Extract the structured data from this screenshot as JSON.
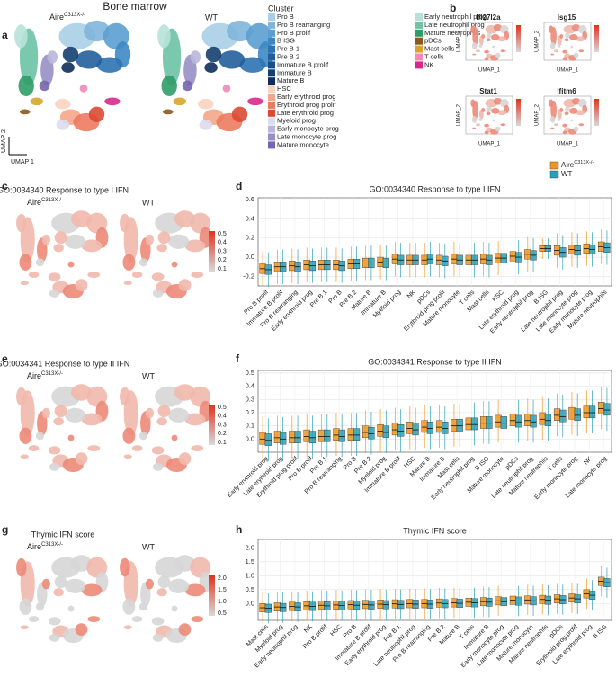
{
  "figure": {
    "title": "Bone marrow",
    "panel_labels": [
      "a",
      "b",
      "c",
      "d",
      "e",
      "f",
      "g",
      "h"
    ],
    "umap_axis": [
      "UMAP 1",
      "UMAP 2"
    ],
    "aire": "Aire",
    "aire_sup": "C313X-/-",
    "wt": "WT",
    "legend_title": "Cluster",
    "clusters": [
      {
        "name": "Pro B",
        "color": "#a9cfe6"
      },
      {
        "name": "Pro B rearranging",
        "color": "#7fb5db"
      },
      {
        "name": "Pro B prolif",
        "color": "#5c9fd0"
      },
      {
        "name": "B ISG",
        "color": "#3d88c4"
      },
      {
        "name": "Pre B 1",
        "color": "#2d72b2"
      },
      {
        "name": "Pre B 2",
        "color": "#215f9c"
      },
      {
        "name": "Immature B prolif",
        "color": "#1a4f86"
      },
      {
        "name": "Immature B",
        "color": "#153f70"
      },
      {
        "name": "Mature B",
        "color": "#0f2f5a"
      },
      {
        "name": "HSC",
        "color": "#fbd3c0"
      },
      {
        "name": "Early erythroid prog",
        "color": "#f4a68a"
      },
      {
        "name": "Erythroid prog prolif",
        "color": "#ec7b5e"
      },
      {
        "name": "Late erythroid prog",
        "color": "#dc4a35"
      },
      {
        "name": "Myeloid prog",
        "color": "#dcdcee"
      },
      {
        "name": "Early monocyte prog",
        "color": "#b9b7da"
      },
      {
        "name": "Late monocyte prog",
        "color": "#9690c4"
      },
      {
        "name": "Mature monocyte",
        "color": "#7566ad"
      },
      {
        "name": "Early neutrophil prog",
        "color": "#b7e2d8"
      },
      {
        "name": "Late neutrophil prog",
        "color": "#6cc3a6"
      },
      {
        "name": "Mature neutrophils",
        "color": "#2f9d67"
      },
      {
        "name": "pDCs",
        "color": "#8a5a1c"
      },
      {
        "name": "Mast cells",
        "color": "#d8a42b"
      },
      {
        "name": "T cells",
        "color": "#f08bb4"
      },
      {
        "name": "NK",
        "color": "#d62a8a"
      }
    ],
    "genes": [
      "Ifi27l2a",
      "Isg15",
      "Stat1",
      "Ifitm6"
    ],
    "b_xlabel": "UMAP_1",
    "b_ylabel": "UMAP_2",
    "score_titles": [
      "GO:0034340 Response to type I IFN",
      "GO:0034341 Response to type II IFN",
      "Thymic IFN score"
    ],
    "colorbars": [
      [
        "0.5",
        "0.4",
        "0.3",
        "0.2",
        "0.1"
      ],
      [
        "0.5",
        "0.4",
        "0.3",
        "0.2",
        "0.1"
      ],
      [
        "2.0",
        "1.5",
        "1.0",
        "0.5"
      ]
    ]
  },
  "chart_data": [
    {
      "type": "box",
      "title": "GO:0034340 Response to type I IFN",
      "grid": true,
      "legend": "top-right",
      "categories": [
        "Pro B prolif",
        "Immature B prolif",
        "Pro B rearranging",
        "Early erythroid prog",
        "Pre B 1",
        "Pro B",
        "Pre B 2",
        "Mature B",
        "Immature B",
        "Myeloid prog",
        "NK",
        "pDCs",
        "Erythroid prog prolif",
        "Mature monocyte",
        "T cells",
        "Mast cells",
        "HSC",
        "Late erythroid prog",
        "Early neutrophil prog",
        "B ISG",
        "Late neutrophil prog",
        "Late monocyte prog",
        "Early monocyte prog",
        "Mature neutrophils"
      ],
      "ylim": [
        -0.3,
        0.62
      ],
      "yticks": [
        -0.2,
        {
          "value": 0,
          "label": "0.0"
        },
        0.2,
        0.4,
        0.6
      ],
      "series": [
        {
          "name": "Aire",
          "superscript": "C313X-/-",
          "color": "#f0961e",
          "values": [
            -0.12,
            -0.1,
            -0.09,
            -0.08,
            -0.08,
            -0.08,
            -0.07,
            -0.06,
            -0.05,
            -0.02,
            -0.03,
            -0.03,
            -0.03,
            -0.02,
            -0.03,
            -0.02,
            -0.01,
            0.01,
            0.03,
            0.09,
            0.07,
            0.08,
            0.09,
            0.11
          ],
          "q1": [
            -0.17,
            -0.15,
            -0.14,
            -0.13,
            -0.13,
            -0.13,
            -0.12,
            -0.11,
            -0.1,
            -0.07,
            -0.08,
            -0.08,
            -0.08,
            -0.07,
            -0.08,
            -0.07,
            -0.06,
            -0.04,
            -0.02,
            0.06,
            0.02,
            0.03,
            0.04,
            0.06
          ],
          "q3": [
            -0.07,
            -0.05,
            -0.04,
            -0.03,
            -0.03,
            -0.03,
            -0.02,
            -0.01,
            0.0,
            0.03,
            0.02,
            0.02,
            0.02,
            0.03,
            0.02,
            0.03,
            0.04,
            0.06,
            0.08,
            0.12,
            0.12,
            0.13,
            0.14,
            0.16
          ]
        },
        {
          "name": "WT",
          "color": "#2aa0b8",
          "values": [
            -0.13,
            -0.1,
            -0.1,
            -0.09,
            -0.08,
            -0.09,
            -0.07,
            -0.06,
            -0.06,
            -0.03,
            -0.03,
            -0.02,
            -0.04,
            -0.03,
            -0.03,
            -0.03,
            -0.01,
            0.0,
            0.02,
            0.09,
            0.05,
            0.07,
            0.08,
            0.1
          ],
          "q1": [
            -0.18,
            -0.15,
            -0.15,
            -0.14,
            -0.13,
            -0.14,
            -0.12,
            -0.11,
            -0.11,
            -0.08,
            -0.08,
            -0.07,
            -0.09,
            -0.08,
            -0.08,
            -0.08,
            -0.06,
            -0.05,
            -0.03,
            0.06,
            0.0,
            0.02,
            0.03,
            0.05
          ],
          "q3": [
            -0.08,
            -0.05,
            -0.05,
            -0.04,
            -0.03,
            -0.04,
            -0.02,
            -0.01,
            -0.01,
            0.02,
            0.02,
            0.03,
            0.01,
            0.02,
            0.02,
            0.02,
            0.04,
            0.05,
            0.07,
            0.12,
            0.1,
            0.12,
            0.13,
            0.15
          ]
        }
      ]
    },
    {
      "type": "box",
      "title": "GO:0034341 Response to type II IFN",
      "grid": true,
      "categories": [
        "Early erythroid prog",
        "Late erythroid prog",
        "Erythroid prog prolif",
        "Pro B prolif",
        "Pre B 1",
        "Pro B rearranging",
        "Pro B",
        "Pre B 2",
        "Myeloid prog",
        "Immature B prolif",
        "HSC",
        "Mature B",
        "Immature B",
        "Mast cells",
        "Early neutrophil prog",
        "B ISG",
        "Mature monocyte",
        "pDCs",
        "Late neutrophil prog",
        "Mature neutrophils",
        "T cells",
        "Early monocyte prog",
        "NK",
        "Late monocyte prog"
      ],
      "ylim": [
        -0.1,
        0.52
      ],
      "yticks": [
        {
          "value": 0,
          "label": "0.0"
        },
        0.1,
        0.2,
        0.3,
        0.4,
        0.5
      ],
      "series": [
        {
          "name": "Aire",
          "superscript": "C313X-/-",
          "color": "#f0961e",
          "values": [
            0.0,
            0.01,
            0.01,
            0.02,
            0.02,
            0.03,
            0.03,
            0.05,
            0.06,
            0.07,
            0.08,
            0.09,
            0.09,
            0.1,
            0.11,
            0.12,
            0.13,
            0.14,
            0.14,
            0.15,
            0.18,
            0.19,
            0.2,
            0.23
          ],
          "q1": [
            -0.04,
            -0.03,
            -0.03,
            -0.02,
            -0.02,
            -0.01,
            -0.01,
            0.01,
            0.02,
            0.03,
            0.04,
            0.05,
            0.05,
            0.06,
            0.07,
            0.08,
            0.09,
            0.1,
            0.1,
            0.11,
            0.14,
            0.15,
            0.16,
            0.19
          ],
          "q3": [
            0.05,
            0.06,
            0.06,
            0.07,
            0.07,
            0.08,
            0.08,
            0.1,
            0.11,
            0.12,
            0.13,
            0.14,
            0.14,
            0.15,
            0.16,
            0.17,
            0.18,
            0.19,
            0.19,
            0.2,
            0.23,
            0.24,
            0.25,
            0.28
          ]
        },
        {
          "name": "WT",
          "color": "#2aa0b8",
          "values": [
            -0.01,
            0.0,
            0.01,
            0.01,
            0.02,
            0.02,
            0.03,
            0.04,
            0.05,
            0.06,
            0.07,
            0.08,
            0.08,
            0.1,
            0.11,
            0.12,
            0.12,
            0.13,
            0.13,
            0.14,
            0.17,
            0.18,
            0.2,
            0.22
          ],
          "q1": [
            -0.05,
            -0.04,
            -0.03,
            -0.03,
            -0.02,
            -0.02,
            -0.01,
            0.0,
            0.01,
            0.02,
            0.03,
            0.04,
            0.04,
            0.06,
            0.07,
            0.08,
            0.08,
            0.09,
            0.09,
            0.1,
            0.13,
            0.14,
            0.16,
            0.18
          ],
          "q3": [
            0.04,
            0.05,
            0.06,
            0.06,
            0.07,
            0.07,
            0.08,
            0.09,
            0.1,
            0.11,
            0.12,
            0.13,
            0.13,
            0.15,
            0.16,
            0.17,
            0.17,
            0.18,
            0.18,
            0.19,
            0.22,
            0.23,
            0.25,
            0.27
          ]
        }
      ]
    },
    {
      "type": "box",
      "title": "Thymic IFN score",
      "grid": true,
      "categories": [
        "Mast cells",
        "Myeloid prog",
        "Early neutrophil prog",
        "NK",
        "Pro B prolif",
        "HSC",
        "Pro B",
        "Immature B prolif",
        "Early erythroid prog",
        "Pre B 1",
        "Late neutrophil prog",
        "Pro B rearranging",
        "Pre B 2",
        "Mature B",
        "T cells",
        "Immature B",
        "Early monocyte prog",
        "Late monocyte prog",
        "Mature monocyte",
        "Mature neutrophils",
        "pDCs",
        "Erythroid prog prolif",
        "Late erythroid prog",
        "B ISG"
      ],
      "ylim": [
        -0.6,
        2.3
      ],
      "yticks": [
        {
          "value": 0,
          "label": "0.0"
        },
        0.5,
        {
          "value": 1,
          "label": "1.0"
        },
        1.5,
        {
          "value": 2,
          "label": "2.0"
        }
      ],
      "series": [
        {
          "name": "Aire",
          "superscript": "C313X-/-",
          "color": "#f0961e",
          "values": [
            -0.15,
            -0.12,
            -0.1,
            -0.08,
            -0.06,
            -0.05,
            -0.04,
            -0.03,
            -0.02,
            -0.01,
            0.0,
            0.0,
            0.02,
            0.03,
            0.05,
            0.07,
            0.1,
            0.12,
            0.13,
            0.15,
            0.17,
            0.2,
            0.35,
            0.8
          ],
          "q1": [
            -0.3,
            -0.27,
            -0.25,
            -0.23,
            -0.21,
            -0.2,
            -0.19,
            -0.18,
            -0.17,
            -0.16,
            -0.15,
            -0.15,
            -0.13,
            -0.12,
            -0.1,
            -0.08,
            -0.05,
            -0.03,
            -0.02,
            0.0,
            0.02,
            0.05,
            0.2,
            0.65
          ],
          "q3": [
            0.0,
            0.03,
            0.05,
            0.07,
            0.09,
            0.1,
            0.11,
            0.12,
            0.13,
            0.14,
            0.15,
            0.15,
            0.17,
            0.18,
            0.2,
            0.22,
            0.25,
            0.27,
            0.28,
            0.3,
            0.32,
            0.35,
            0.5,
            0.95
          ]
        },
        {
          "name": "WT",
          "color": "#2aa0b8",
          "values": [
            -0.17,
            -0.14,
            -0.12,
            -0.1,
            -0.08,
            -0.07,
            -0.06,
            -0.05,
            -0.04,
            -0.03,
            -0.02,
            -0.02,
            0.0,
            0.01,
            0.03,
            0.05,
            0.07,
            0.09,
            0.1,
            0.12,
            0.14,
            0.17,
            0.3,
            0.75
          ],
          "q1": [
            -0.32,
            -0.29,
            -0.27,
            -0.25,
            -0.23,
            -0.22,
            -0.21,
            -0.2,
            -0.19,
            -0.18,
            -0.17,
            -0.17,
            -0.15,
            -0.14,
            -0.12,
            -0.1,
            -0.08,
            -0.06,
            -0.05,
            -0.03,
            -0.01,
            0.02,
            0.15,
            0.6
          ],
          "q3": [
            -0.02,
            0.01,
            0.03,
            0.05,
            0.07,
            0.08,
            0.09,
            0.1,
            0.11,
            0.12,
            0.13,
            0.13,
            0.15,
            0.16,
            0.18,
            0.2,
            0.22,
            0.24,
            0.25,
            0.27,
            0.29,
            0.32,
            0.45,
            0.9
          ]
        }
      ]
    }
  ]
}
